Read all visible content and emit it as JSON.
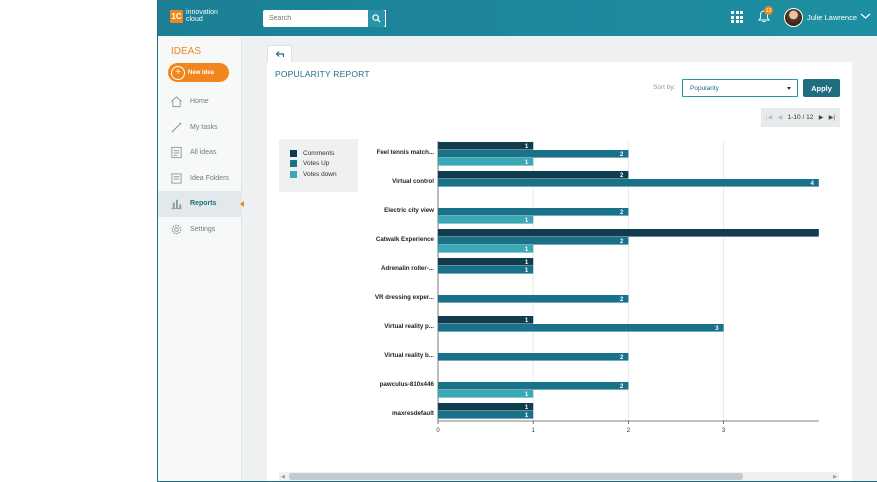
{
  "app": {
    "logo_badge": "1C",
    "logo_text": "innovation cloud"
  },
  "header": {
    "search_placeholder": "Search",
    "notification_count": "13",
    "user_name": "Julie Lawrence"
  },
  "sidebar": {
    "title": "IDEAS",
    "new_idea_label": "New Idea",
    "items": [
      {
        "label": "Home",
        "icon": "home-icon"
      },
      {
        "label": "My tasks",
        "icon": "wand-icon"
      },
      {
        "label": "All ideas",
        "icon": "list-icon"
      },
      {
        "label": "Idea Folders",
        "icon": "folder-icon"
      },
      {
        "label": "Reports",
        "icon": "bar-chart-icon",
        "active": true
      },
      {
        "label": "Settings",
        "icon": "gear-icon"
      }
    ]
  },
  "report": {
    "title": "POPULARITY REPORT",
    "sort_label": "Sort by:",
    "sort_value": "Popularity",
    "apply_label": "Apply",
    "pager_label": "1-10 / 12"
  },
  "colors": {
    "comments": "#0f3d4f",
    "votes_up": "#19718a",
    "votes_down": "#3aa8b5",
    "accent": "#f0861d",
    "topbar": "#1c7f95"
  },
  "chart_data": {
    "type": "bar",
    "orientation": "horizontal",
    "categories": [
      "Feel tennis match...",
      "Virtual control",
      "Electric city view",
      "Catwalk Experience",
      "Adrenalin roller-...",
      "VR dressing exper...",
      "Virtual reality p...",
      "Virtual reality b...",
      "pawculus-810x446",
      "maxresdefault"
    ],
    "series": [
      {
        "name": "Comments",
        "values": [
          1,
          2,
          0,
          4,
          1,
          0,
          1,
          0,
          0,
          1
        ]
      },
      {
        "name": "Votes Up",
        "values": [
          2,
          4,
          2,
          2,
          1,
          2,
          3,
          2,
          2,
          1
        ]
      },
      {
        "name": "Votes down",
        "values": [
          1,
          0,
          1,
          1,
          0,
          0,
          0,
          0,
          1,
          0
        ]
      }
    ],
    "value_labels": [
      [
        "1",
        "2",
        "1"
      ],
      [
        "2",
        "4",
        ""
      ],
      [
        "",
        "2",
        "1"
      ],
      [
        "",
        "2",
        "1"
      ],
      [
        "1",
        "1",
        ""
      ],
      [
        "",
        "2",
        ""
      ],
      [
        "1",
        "3",
        ""
      ],
      [
        "",
        "2",
        ""
      ],
      [
        "",
        "2",
        "1"
      ],
      [
        "1",
        "1",
        ""
      ]
    ],
    "x_ticks": [
      "0",
      "1",
      "2",
      "3"
    ],
    "xlim": [
      0,
      4
    ],
    "grid": true,
    "legend": "top-left"
  }
}
